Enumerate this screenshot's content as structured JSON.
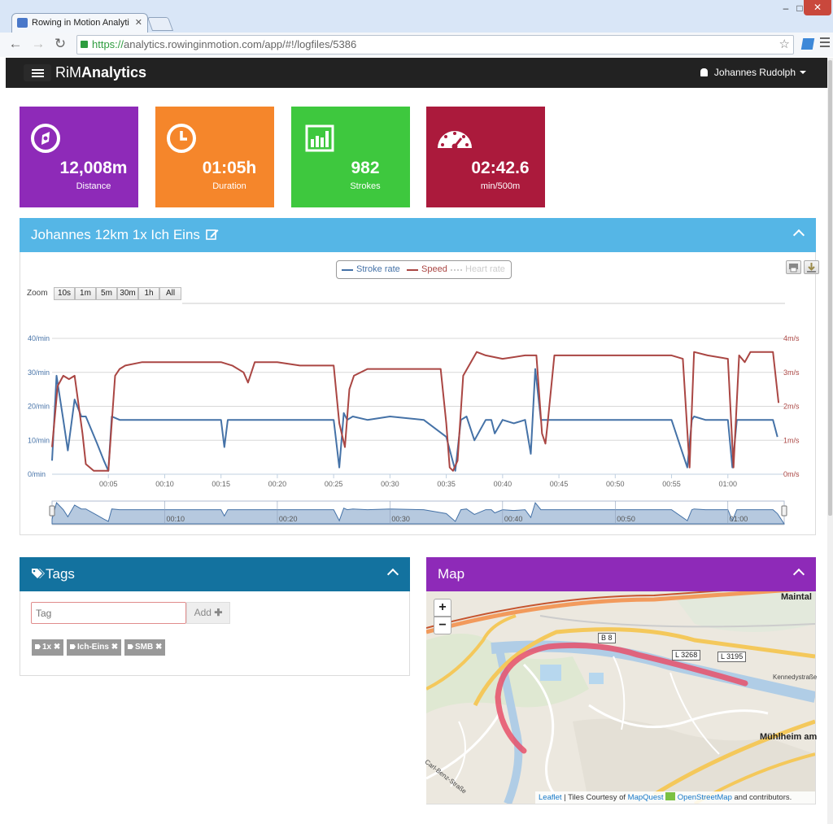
{
  "browser": {
    "tab_title": "Rowing in Motion Analyti",
    "tab_close": "✕",
    "url_scheme": "https://",
    "url_rest": "analytics.rowinginmotion.com/app/#!/logfiles/5386",
    "back": "←",
    "forward": "→",
    "reload": "↻",
    "star": "☆",
    "win_min": "–",
    "win_max": "□",
    "win_close": "✕"
  },
  "navbar": {
    "brand_light": "RiM",
    "brand_bold": "Analytics",
    "user_name": "Johannes Rudolph"
  },
  "tiles": [
    {
      "value": "12,008m",
      "label": "Distance",
      "color": "#8e2ab8",
      "icon": "compass-icon"
    },
    {
      "value": "01:05h",
      "label": "Duration",
      "color": "#f5862b",
      "icon": "clock-icon"
    },
    {
      "value": "982",
      "label": "Strokes",
      "color": "#3ec83e",
      "icon": "bar-chart-icon"
    },
    {
      "value": "02:42.6",
      "label": "min/500m",
      "color": "#ab1a3c",
      "icon": "speedometer-icon"
    }
  ],
  "session": {
    "title": "Johannes 12km 1x Ich Eins",
    "header_color": "#55b6e6"
  },
  "chart_data": {
    "type": "line",
    "legend": [
      "Stroke rate",
      "Speed",
      "Heart rate"
    ],
    "legend_hidden": [
      "Heart rate"
    ],
    "zoom_label": "Zoom",
    "zoom_buttons": [
      "10s",
      "1m",
      "5m",
      "30m",
      "1h",
      "All"
    ],
    "x_ticks": [
      "00:05",
      "00:10",
      "00:15",
      "00:20",
      "00:25",
      "00:30",
      "00:35",
      "00:40",
      "00:45",
      "00:50",
      "00:55",
      "01:00"
    ],
    "navigator_ticks": [
      "00:10",
      "00:20",
      "00:30",
      "00:40",
      "00:50",
      "01:00"
    ],
    "x_range_min": [
      0,
      65
    ],
    "y_left": {
      "ticks": [
        "0/min",
        "10/min",
        "20/min",
        "30/min",
        "40/min"
      ],
      "range": [
        0,
        40
      ],
      "color": "#4572a7"
    },
    "y_right": {
      "ticks": [
        "0m/s",
        "1m/s",
        "2m/s",
        "3m/s",
        "4m/s"
      ],
      "range": [
        0,
        4
      ],
      "color": "#aa4643"
    },
    "series": [
      {
        "name": "Stroke rate",
        "color": "#4572a7",
        "x": [
          0,
          0.4,
          1,
          1.4,
          2,
          2.6,
          3,
          4,
          4.6,
          5,
          5.3,
          6,
          8,
          10,
          12,
          14,
          15,
          15.3,
          15.6,
          18,
          20,
          22,
          25,
          25.5,
          25.9,
          26.2,
          26.7,
          28,
          30,
          33,
          35,
          35.8,
          36.3,
          36.8,
          37.5,
          38.5,
          39,
          39.3,
          40,
          41,
          42,
          42.5,
          42.9,
          43.4,
          45,
          48,
          50,
          53,
          55,
          56.4,
          56.8,
          57,
          58,
          60,
          60.4,
          60.8,
          61.5,
          63,
          64,
          64.4
        ],
        "values": [
          4,
          29,
          16,
          7,
          22,
          17,
          17,
          9,
          4,
          1,
          17,
          16,
          16,
          16,
          16,
          16,
          16,
          8,
          16,
          16,
          16,
          16,
          16,
          2,
          18,
          16,
          17,
          16,
          17,
          16,
          11,
          1,
          16,
          17,
          10,
          16,
          16,
          12,
          16,
          15,
          16,
          6,
          31,
          16,
          16,
          16,
          16,
          16,
          16,
          2,
          16,
          17,
          16,
          16,
          2,
          16,
          16,
          16,
          16,
          11
        ]
      },
      {
        "name": "Speed",
        "unit": "m/s",
        "color": "#aa4643",
        "x": [
          0,
          0.5,
          1,
          1.5,
          2,
          2.7,
          3,
          3.7,
          4.3,
          5,
          5.6,
          6,
          6.5,
          8,
          9,
          10,
          12,
          14,
          15,
          16,
          17,
          17.4,
          17.9,
          18,
          20,
          22,
          24,
          25,
          25.5,
          26,
          26.4,
          26.8,
          28,
          30,
          33,
          34.5,
          35,
          35.3,
          35.6,
          36,
          36.5,
          37.7,
          38.5,
          40,
          42,
          43,
          43.5,
          43.8,
          44,
          44.6,
          45,
          48,
          50,
          52,
          55,
          56,
          56.6,
          57,
          58.2,
          60,
          60.5,
          61,
          61.5,
          62,
          64,
          64.5
        ],
        "values": [
          0.8,
          2.6,
          2.9,
          2.8,
          2.9,
          1.2,
          0.3,
          0.1,
          0.1,
          0.1,
          2.9,
          3.1,
          3.2,
          3.3,
          3.3,
          3.3,
          3.3,
          3.3,
          3.3,
          3.2,
          3.0,
          2.7,
          3.2,
          3.3,
          3.3,
          3.2,
          3.2,
          3.2,
          1.5,
          0.8,
          2.5,
          2.9,
          3.1,
          3.1,
          3.1,
          3.1,
          1.5,
          0.2,
          0.1,
          0.4,
          2.9,
          3.6,
          3.5,
          3.4,
          3.5,
          3.5,
          1.2,
          0.9,
          1.5,
          3.5,
          3.5,
          3.5,
          3.5,
          3.5,
          3.5,
          3.4,
          0.2,
          3.6,
          3.5,
          3.4,
          0.2,
          3.5,
          3.3,
          3.6,
          3.6,
          2.1
        ]
      },
      {
        "name": "Heart rate",
        "values": []
      }
    ]
  },
  "tags": {
    "title": "Tags",
    "header_color": "#13729f",
    "placeholder": "Tag",
    "add_label": "Add",
    "add_icon": "plus-icon",
    "items": [
      "1x",
      "Ich-Eins",
      "SMB"
    ]
  },
  "map": {
    "title": "Map",
    "header_color": "#8e2ab8",
    "zoom_in": "+",
    "zoom_out": "−",
    "road_labels": [
      "B 8",
      "L 3268",
      "L 3195"
    ],
    "towns": [
      "Maintal",
      "Mühlheim am"
    ],
    "streets": [
      "Kennedystraße",
      "Carl-Benz-Straße"
    ],
    "attribution_leaflet": "Leaflet",
    "attribution_text": "| Tiles Courtesy of",
    "attribution_mapquest": "MapQuest",
    "attribution_osm": "OpenStreetMap",
    "attribution_tail": "and contributors.",
    "route_color": "#e8506a"
  }
}
